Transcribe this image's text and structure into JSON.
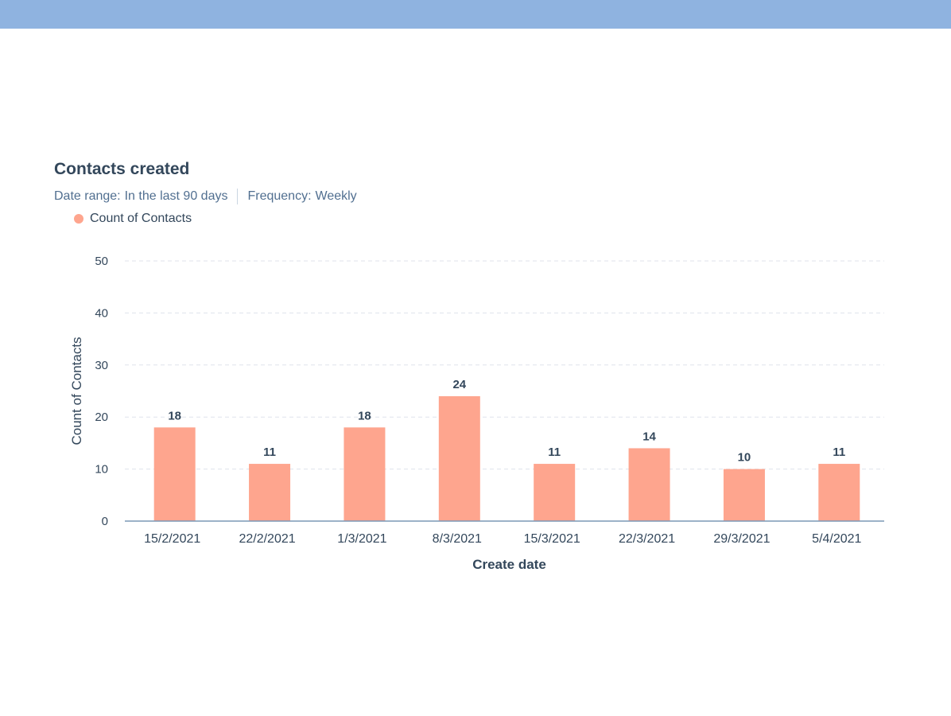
{
  "header": {
    "title": "Contacts created",
    "date_range_label": "Date range:",
    "date_range_value": "In the last 90 days",
    "frequency_label": "Frequency:",
    "frequency_value": "Weekly"
  },
  "colors": {
    "bar": "#fea58e",
    "axis": "#7c98b6",
    "grid": "#dfe3eb",
    "top_bar": "#8fb3e0"
  },
  "chart_data": {
    "type": "bar",
    "title": "Contacts created",
    "categories": [
      "15/2/2021",
      "22/2/2021",
      "1/3/2021",
      "8/3/2021",
      "15/3/2021",
      "22/3/2021",
      "29/3/2021",
      "5/4/2021"
    ],
    "series": [
      {
        "name": "Count of Contacts",
        "values": [
          18,
          11,
          18,
          24,
          11,
          14,
          10,
          11
        ]
      }
    ],
    "xlabel": "Create date",
    "ylabel": "Count of Contacts",
    "ylim": [
      0,
      50
    ],
    "yticks": [
      0,
      10,
      20,
      30,
      40,
      50
    ],
    "grid": true,
    "data_labels": true,
    "legend_position": "top-left"
  }
}
